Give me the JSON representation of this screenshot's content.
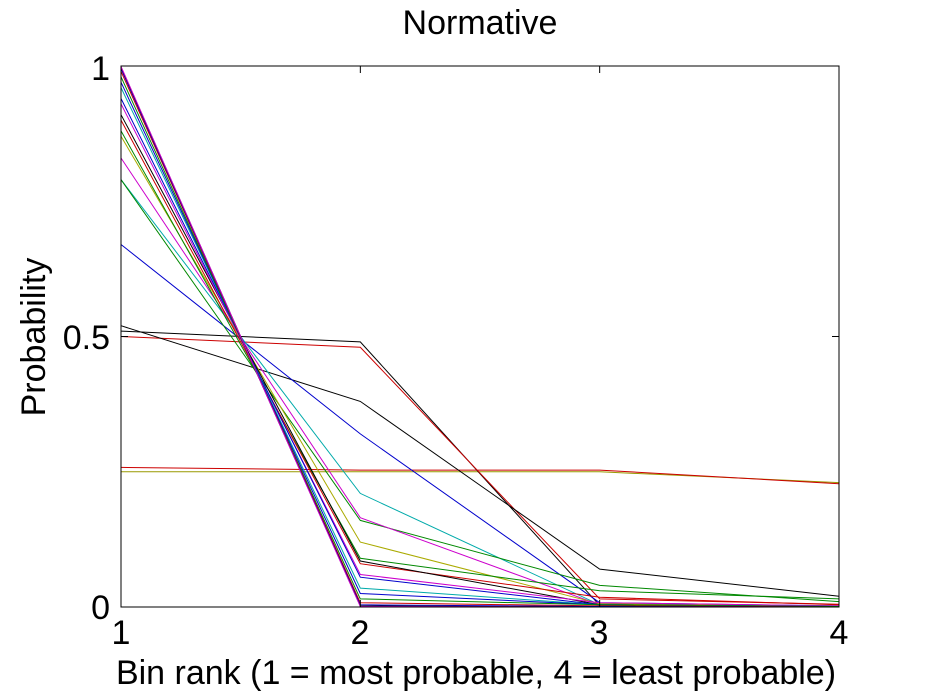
{
  "chart_data": {
    "type": "line",
    "title": "Normative",
    "xlabel": "Bin rank (1 = most probable, 4 = least probable)",
    "ylabel": "Probability",
    "x": [
      1,
      2,
      3,
      4
    ],
    "xlim": [
      1,
      4
    ],
    "ylim": [
      0,
      1
    ],
    "xticks": [
      "1",
      "2",
      "3",
      "4"
    ],
    "yticks": [
      "0",
      "0.5",
      "1"
    ],
    "grid": false,
    "legend": "none",
    "series": [
      {
        "color": "#999900",
        "values": [
          0.25,
          0.25,
          0.25,
          0.23
        ]
      },
      {
        "color": "#cc0000",
        "values": [
          0.258,
          0.253,
          0.253,
          0.228
        ]
      },
      {
        "color": "#000000",
        "values": [
          0.51,
          0.49,
          0.003,
          0.001
        ]
      },
      {
        "color": "#cc0000",
        "values": [
          0.5,
          0.48,
          0.015,
          0.005
        ]
      },
      {
        "color": "#000000",
        "values": [
          0.52,
          0.38,
          0.07,
          0.02
        ]
      },
      {
        "color": "#0000cc",
        "values": [
          0.67,
          0.32,
          0.008,
          0.002
        ]
      },
      {
        "color": "#00aaaa",
        "values": [
          0.79,
          0.21,
          0.004,
          0.001
        ]
      },
      {
        "color": "#008800",
        "values": [
          0.79,
          0.16,
          0.04,
          0.01
        ]
      },
      {
        "color": "#cc00cc",
        "values": [
          0.83,
          0.165,
          0.004,
          0.001
        ]
      },
      {
        "color": "#aaaa00",
        "values": [
          0.87,
          0.12,
          0.006,
          0.002
        ]
      },
      {
        "color": "#008800",
        "values": [
          0.88,
          0.09,
          0.03,
          0.015
        ]
      },
      {
        "color": "#cc0000",
        "values": [
          0.9,
          0.08,
          0.018,
          0.004
        ]
      },
      {
        "color": "#000000",
        "values": [
          0.91,
          0.085,
          0.004,
          0.001
        ]
      },
      {
        "color": "#cc00cc",
        "values": [
          0.93,
          0.06,
          0.008,
          0.002
        ]
      },
      {
        "color": "#0000cc",
        "values": [
          0.94,
          0.055,
          0.004,
          0.001
        ]
      },
      {
        "color": "#00aaaa",
        "values": [
          0.96,
          0.035,
          0.004,
          0.001
        ]
      },
      {
        "color": "#0000cc",
        "values": [
          0.97,
          0.025,
          0.004,
          0.001
        ]
      },
      {
        "color": "#008800",
        "values": [
          0.98,
          0.015,
          0.004,
          0.001
        ]
      },
      {
        "color": "#cc0000",
        "values": [
          0.99,
          0.008,
          0.002,
          0.0
        ]
      },
      {
        "color": "#0000cc",
        "values": [
          0.995,
          0.004,
          0.001,
          0.0
        ]
      },
      {
        "color": "#000000",
        "values": [
          0.998,
          0.002,
          0.0,
          0.0
        ]
      },
      {
        "color": "#cc00cc",
        "values": [
          0.999,
          0.001,
          0.0,
          0.0
        ]
      }
    ]
  }
}
